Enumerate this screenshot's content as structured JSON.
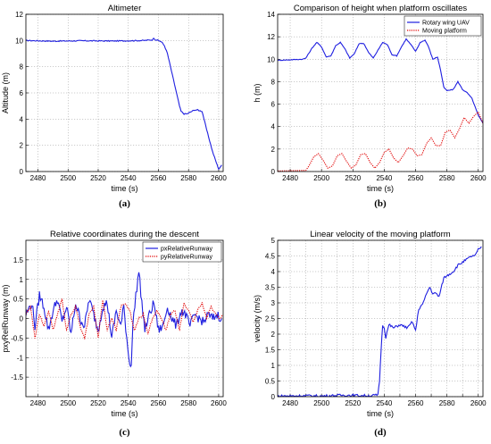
{
  "chart_data": [
    {
      "id": "a",
      "type": "line",
      "title": "Altimeter",
      "xlabel": "time (s)",
      "ylabel": "Altitude (m)",
      "caption": "(a)",
      "xlim": [
        2472,
        2603
      ],
      "ylim": [
        0,
        12
      ],
      "xticks": [
        2480,
        2500,
        2520,
        2540,
        2560,
        2580,
        2600
      ],
      "yticks": [
        0,
        2,
        4,
        6,
        8,
        10,
        12
      ],
      "grid": true,
      "legend": null,
      "series": [
        {
          "color": "#1f1fe0",
          "dash": "solid",
          "noise": 0.04,
          "x": [
            2472,
            2490,
            2510,
            2530,
            2550,
            2556,
            2557,
            2558,
            2560,
            2562,
            2564,
            2566,
            2568,
            2570,
            2572,
            2574,
            2575,
            2577,
            2579,
            2584,
            2586,
            2587,
            2589,
            2592,
            2596,
            2599,
            2600,
            2601,
            2602
          ],
          "y": [
            10.0,
            9.95,
            9.98,
            9.96,
            10.0,
            10.05,
            10.2,
            10.05,
            10.0,
            9.9,
            9.6,
            9.0,
            8.0,
            7.0,
            6.0,
            5.0,
            4.6,
            4.4,
            4.4,
            4.7,
            4.7,
            4.65,
            4.6,
            3.2,
            1.5,
            0.5,
            0.2,
            0.3,
            0.5
          ]
        }
      ]
    },
    {
      "id": "b",
      "type": "line",
      "title": "Comparison of height when platform oscillates",
      "xlabel": "time (s)",
      "ylabel": "h (m)",
      "caption": "(b)",
      "xlim": [
        2472,
        2603
      ],
      "ylim": [
        0,
        14
      ],
      "xticks": [
        2480,
        2500,
        2520,
        2540,
        2560,
        2580,
        2600
      ],
      "yticks": [
        0,
        2,
        4,
        6,
        8,
        10,
        12,
        14
      ],
      "grid": true,
      "legend": {
        "position": "top-right"
      },
      "series": [
        {
          "name": "Rotary wing UAV",
          "color": "#1f1fe0",
          "dash": "solid",
          "noise": 0.03,
          "x": [
            2472,
            2480,
            2488,
            2490,
            2494,
            2497,
            2500,
            2503,
            2506,
            2509,
            2512,
            2515,
            2518,
            2521,
            2524,
            2527,
            2530,
            2533,
            2536,
            2539,
            2542,
            2545,
            2548,
            2551,
            2554,
            2557,
            2560,
            2563,
            2566,
            2568,
            2571,
            2574,
            2576,
            2578,
            2580,
            2584,
            2587,
            2590,
            2593,
            2596,
            2600,
            2603
          ],
          "y": [
            9.9,
            9.95,
            10.0,
            10.1,
            11.0,
            11.5,
            11.1,
            10.2,
            10.3,
            11.2,
            11.5,
            10.9,
            10.1,
            10.5,
            11.4,
            11.4,
            10.6,
            10.1,
            10.8,
            11.5,
            11.3,
            10.4,
            10.3,
            11.1,
            11.8,
            11.3,
            10.7,
            11.5,
            11.7,
            11.2,
            10.0,
            10.2,
            9.0,
            7.5,
            7.2,
            7.3,
            8.0,
            7.3,
            7.0,
            6.5,
            5.0,
            4.3
          ]
        },
        {
          "name": "Moving platform",
          "color": "#e00000",
          "dash": "dot",
          "noise": 0.0,
          "x": [
            2472,
            2490,
            2492,
            2495,
            2498,
            2501,
            2504,
            2507,
            2510,
            2513,
            2516,
            2519,
            2522,
            2525,
            2528,
            2531,
            2534,
            2537,
            2540,
            2543,
            2546,
            2549,
            2552,
            2555,
            2558,
            2561,
            2564,
            2567,
            2570,
            2573,
            2576,
            2579,
            2582,
            2585,
            2588,
            2591,
            2594,
            2597,
            2600,
            2603
          ],
          "y": [
            0.05,
            0.1,
            0.5,
            1.3,
            1.6,
            1.0,
            0.3,
            0.5,
            1.4,
            1.6,
            0.9,
            0.3,
            0.6,
            1.5,
            1.6,
            0.8,
            0.3,
            0.8,
            1.7,
            2.0,
            1.2,
            0.8,
            1.4,
            2.1,
            2.0,
            1.4,
            1.5,
            2.5,
            3.0,
            2.3,
            2.3,
            3.5,
            3.7,
            3.0,
            3.8,
            4.8,
            4.3,
            4.9,
            5.3,
            4.3
          ]
        }
      ]
    },
    {
      "id": "c",
      "type": "line",
      "title": "Relative coordinates during the descent",
      "xlabel": "time (s)",
      "ylabel": "pxyRelRunway (m)",
      "caption": "(c)",
      "xlim": [
        2472,
        2603
      ],
      "ylim": [
        -2,
        2
      ],
      "xticks": [
        2480,
        2500,
        2520,
        2540,
        2560,
        2580,
        2600
      ],
      "yticks": [
        -1.5,
        -1,
        -0.5,
        0,
        0.5,
        1,
        1.5
      ],
      "grid": true,
      "legend": {
        "position": "top-right"
      },
      "series": [
        {
          "name": "pxRelativeRunway",
          "color": "#1f1fe0",
          "dash": "solid",
          "noise": 0.12,
          "x": [
            2472,
            2476,
            2478,
            2481,
            2484,
            2487,
            2490,
            2493,
            2496,
            2499,
            2502,
            2505,
            2508,
            2511,
            2514,
            2517,
            2520,
            2523,
            2526,
            2529,
            2532,
            2535,
            2537,
            2539,
            2541,
            2542,
            2543,
            2545,
            2547,
            2549,
            2551,
            2554,
            2557,
            2560,
            2563,
            2566,
            2569,
            2572,
            2575,
            2578,
            2581,
            2584,
            2587,
            2590,
            2593,
            2596,
            2599,
            2602
          ],
          "y": [
            0.1,
            0.4,
            -0.2,
            0.6,
            0.3,
            -0.3,
            0.2,
            0.5,
            -0.1,
            0.3,
            -0.4,
            0.4,
            0.0,
            -0.2,
            0.5,
            0.1,
            -0.3,
            0.3,
            0.4,
            -0.5,
            0.2,
            -0.2,
            0.3,
            -0.5,
            -1.2,
            -1.1,
            -0.2,
            0.6,
            1.2,
            0.4,
            -0.3,
            0.1,
            0.4,
            -0.3,
            -0.2,
            0.3,
            0.0,
            -0.2,
            0.2,
            0.1,
            -0.2,
            0.1,
            0.0,
            -0.1,
            0.1,
            0.0,
            0.1,
            0.0
          ]
        },
        {
          "name": "pyRelativeRunway",
          "color": "#e00000",
          "dash": "dot",
          "noise": 0.03,
          "x": [
            2472,
            2475,
            2478,
            2481,
            2484,
            2487,
            2490,
            2493,
            2496,
            2499,
            2502,
            2505,
            2508,
            2511,
            2514,
            2517,
            2520,
            2523,
            2526,
            2529,
            2532,
            2535,
            2538,
            2541,
            2544,
            2547,
            2550,
            2553,
            2556,
            2559,
            2562,
            2565,
            2568,
            2571,
            2574,
            2577,
            2580,
            2583,
            2586,
            2589,
            2592,
            2595,
            2598,
            2601,
            2603
          ],
          "y": [
            0.1,
            0.3,
            -0.5,
            0.1,
            -0.2,
            0.2,
            -0.3,
            0.1,
            0.5,
            -0.3,
            0.1,
            0.3,
            -0.2,
            -0.5,
            0.1,
            0.3,
            -0.5,
            0.5,
            -0.3,
            0.0,
            -0.3,
            0.3,
            0.4,
            0.2,
            -0.3,
            0.0,
            0.1,
            -0.4,
            0.0,
            0.2,
            0.0,
            -0.3,
            0.1,
            0.2,
            -0.3,
            0.4,
            0.2,
            -0.1,
            0.2,
            0.4,
            0.0,
            0.3,
            0.1,
            0.0,
            0.1
          ]
        }
      ]
    },
    {
      "id": "d",
      "type": "line",
      "title": "Linear velocity of the moving platform",
      "xlabel": "time (s)",
      "ylabel": "velocity (m/s)",
      "caption": "(d)",
      "xlim": [
        2472,
        2603
      ],
      "ylim": [
        0,
        5
      ],
      "xticks": [
        2480,
        2490,
        2500,
        2510,
        2520,
        2530,
        2540,
        2550,
        2560,
        2570,
        2580,
        2590,
        2600
      ],
      "yticks": [
        0,
        0.5,
        1,
        1.5,
        2,
        2.5,
        3,
        3.5,
        4,
        4.5,
        5
      ],
      "grid": true,
      "legend": null,
      "series": [
        {
          "color": "#1f1fe0",
          "dash": "solid",
          "noise": 0.04,
          "x": [
            2472,
            2490,
            2500,
            2515,
            2530,
            2536,
            2537,
            2538,
            2539,
            2540,
            2541,
            2543,
            2546,
            2550,
            2555,
            2558,
            2560,
            2562,
            2565,
            2567,
            2569,
            2571,
            2573,
            2575,
            2578,
            2581,
            2584,
            2587,
            2590,
            2593,
            2596,
            2598,
            2600,
            2602
          ],
          "y": [
            0.02,
            0.03,
            0.02,
            0.05,
            0.03,
            0.05,
            0.5,
            1.5,
            2.3,
            2.2,
            1.9,
            2.3,
            2.2,
            2.3,
            2.2,
            2.4,
            2.1,
            2.8,
            3.0,
            3.3,
            3.5,
            3.3,
            3.3,
            3.2,
            3.8,
            3.9,
            4.0,
            4.2,
            4.3,
            4.4,
            4.5,
            4.5,
            4.7,
            4.8
          ]
        }
      ]
    }
  ]
}
